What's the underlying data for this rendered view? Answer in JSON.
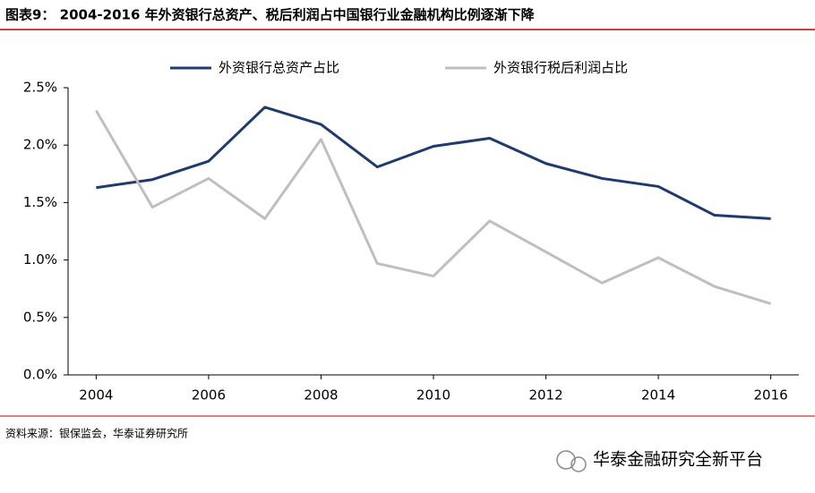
{
  "chart_data": {
    "type": "line",
    "title": "图表9： 2004-2016 年外资银行总资产、税后利润占中国银行业金融机构比例逐渐下降",
    "source": "资料来源：银保监会，华泰证券研究所",
    "watermark": "华泰金融研究全新平台",
    "x": [
      2004,
      2005,
      2006,
      2007,
      2008,
      2009,
      2010,
      2011,
      2012,
      2013,
      2014,
      2015,
      2016
    ],
    "series": [
      {
        "name": "外资银行总资产占比",
        "color": "#1f3a6e",
        "values": [
          1.63,
          1.7,
          1.86,
          2.33,
          2.18,
          1.81,
          1.99,
          2.06,
          1.84,
          1.71,
          1.64,
          1.39,
          1.36
        ]
      },
      {
        "name": "外资银行税后利润占比",
        "color": "#bfbfbf",
        "values": [
          2.3,
          1.46,
          1.71,
          1.36,
          2.05,
          0.97,
          0.86,
          1.34,
          1.07,
          0.8,
          1.02,
          0.77,
          0.62
        ]
      }
    ],
    "xlim": [
      2003.5,
      2016.5
    ],
    "xticks": [
      2004,
      2006,
      2008,
      2010,
      2012,
      2014,
      2016
    ],
    "ylim": [
      0,
      2.5
    ],
    "yticks": [
      {
        "value": 0,
        "label": "0.0%"
      },
      {
        "value": 0.5,
        "label": "0.5%"
      },
      {
        "value": 1,
        "label": "1.0%"
      },
      {
        "value": 1.5,
        "label": "1.5%"
      },
      {
        "value": 2,
        "label": "2.0%"
      },
      {
        "value": 2.5,
        "label": "2.5%"
      }
    ],
    "legend": "top",
    "grid": false
  }
}
